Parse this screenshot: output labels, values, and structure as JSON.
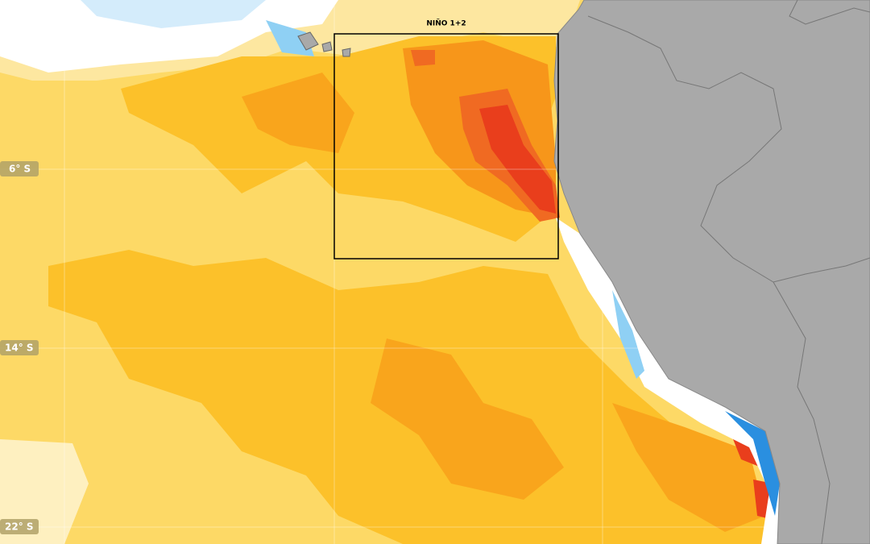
{
  "map": {
    "region_label": "NIÑO 1+2",
    "lat_labels": [
      "6° S",
      "14° S",
      "22° S"
    ]
  }
}
